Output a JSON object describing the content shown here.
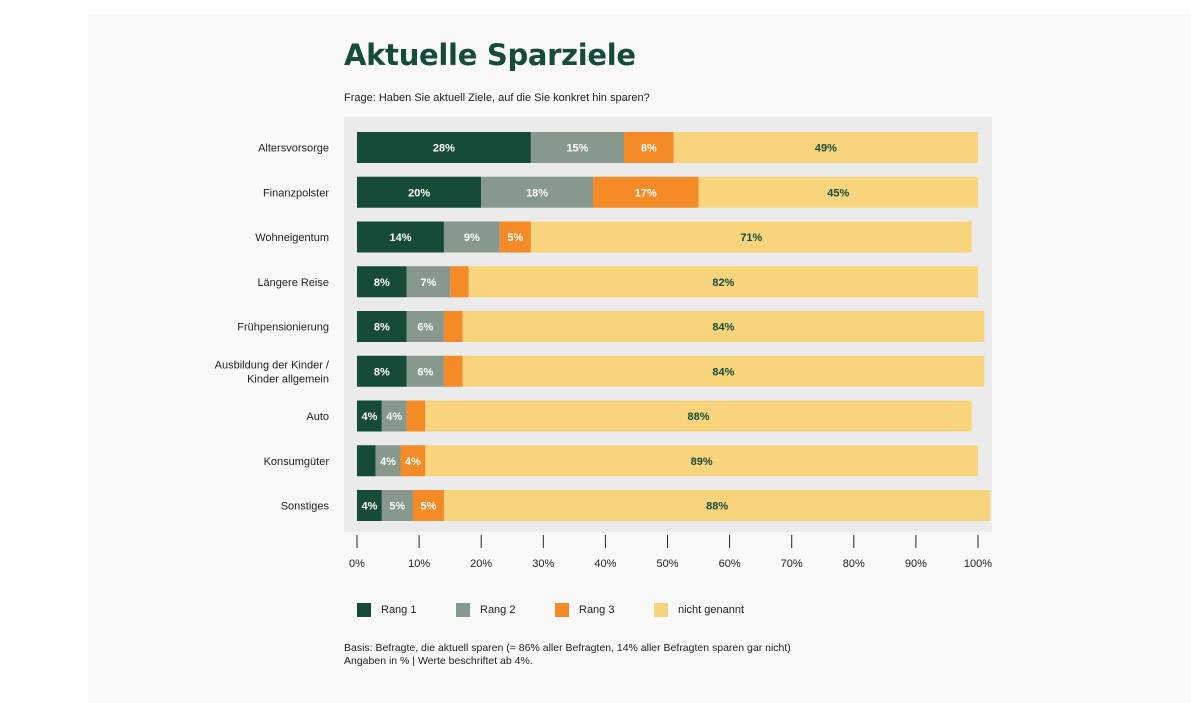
{
  "header": {
    "title": "Aktuelle Sparziele",
    "subtitle": "Frage: Haben Sie aktuell Ziele, auf die Sie konkret hin sparen?"
  },
  "chart_data": {
    "type": "bar",
    "orientation": "horizontal",
    "stacked": true,
    "title": "Aktuelle Sparziele",
    "subtitle": "Frage: Haben Sie aktuell Ziele, auf die Sie konkret hin sparen?",
    "categories": [
      "Altersvorsorge",
      "Finanzpolster",
      "Wohneigentum",
      "Längere Reise",
      "Frühpensionierung",
      "Ausbildung der Kinder /\nKinder allgemein",
      "Auto",
      "Konsumgüter",
      "Sonstiges"
    ],
    "series": [
      {
        "name": "Rang 1",
        "color": "#164b37",
        "values": [
          28,
          20,
          14,
          8,
          8,
          8,
          4,
          3,
          4
        ],
        "labels": [
          "28%",
          "20%",
          "14%",
          "8%",
          "8%",
          "8%",
          "4%",
          "",
          "4%"
        ]
      },
      {
        "name": "Rang 2",
        "color": "#87988c",
        "values": [
          15,
          18,
          9,
          7,
          6,
          6,
          4,
          4,
          5
        ],
        "labels": [
          "15%",
          "18%",
          "9%",
          "7%",
          "6%",
          "6%",
          "4%",
          "4%",
          "5%"
        ]
      },
      {
        "name": "Rang 3",
        "color": "#f58b26",
        "values": [
          8,
          17,
          5,
          3,
          3,
          3,
          3,
          4,
          5
        ],
        "labels": [
          "8%",
          "17%",
          "5%",
          "",
          "",
          "",
          "",
          "4%",
          "5%"
        ]
      },
      {
        "name": "nicht genannt",
        "color": "#f8d57c",
        "values": [
          49,
          45,
          71,
          82,
          84,
          84,
          88,
          89,
          88
        ],
        "labels": [
          "49%",
          "45%",
          "71%",
          "82%",
          "84%",
          "84%",
          "88%",
          "89%",
          "88%"
        ]
      }
    ],
    "xlim": [
      0,
      100
    ],
    "xticks": [
      "0%",
      "10%",
      "20%",
      "30%",
      "40%",
      "50%",
      "60%",
      "70%",
      "80%",
      "90%",
      "100%"
    ],
    "grid": false,
    "legend_position": "bottom"
  },
  "footnote": {
    "line1": "Basis: Befragte, die aktuell sparen (= 86% aller Befragten, 14% aller Befragten sparen gar nicht)",
    "line2": "Angaben in % | Werte beschriftet ab 4%."
  }
}
